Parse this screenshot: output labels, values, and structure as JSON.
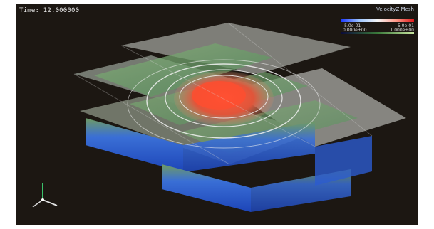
{
  "viewer": {
    "time_label": "Time: 12.000000",
    "background_color": "#1c1712"
  },
  "legend": {
    "title": "VelocityZ Mesh",
    "primary": {
      "min_label": "-5.0e-01",
      "max_label": "5.0e-01",
      "colormap": [
        "#1e3cff",
        "#9ec6ff",
        "#f4f4f4",
        "#ff9a8a",
        "#e01a1a"
      ]
    },
    "secondary": {
      "min_label": "0.000e+00",
      "max_label": "1.000e+00",
      "colormap": [
        "#0b0b3a",
        "#3a7a3a",
        "#c8e6a0"
      ]
    }
  },
  "scene": {
    "description_icon": "3d-cross-shaped-volume-icon",
    "colors": {
      "surface_gray": "#8a8a84",
      "layer_green": "#6ea56a",
      "layer_blue": "#2f6ad9",
      "hot_core": "#e0553a",
      "ripple": "#f2f2f2"
    }
  },
  "axes_widget": {
    "icon": "orientation-axes-icon"
  }
}
